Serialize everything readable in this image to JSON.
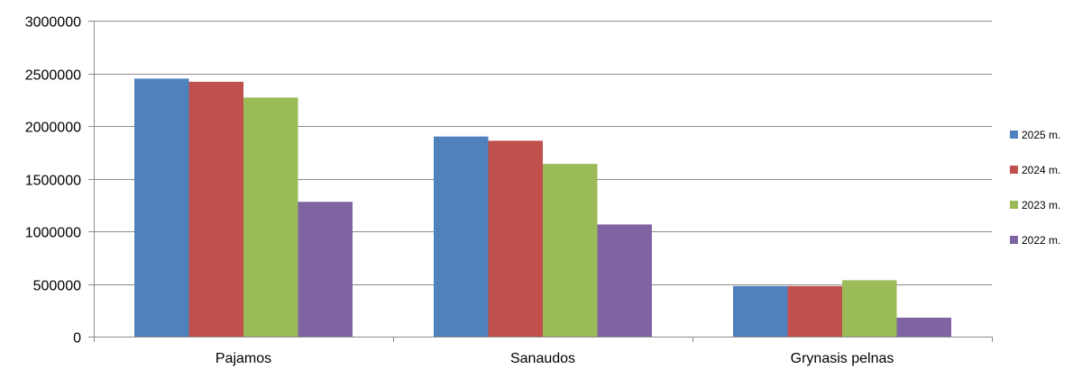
{
  "chart_data": {
    "type": "bar",
    "categories": [
      "Pajamos",
      "Sanaudos",
      "Grynasis pelnas"
    ],
    "series": [
      {
        "name": "2025 m.",
        "color": "#4F81BD",
        "values": [
          2450000,
          1900000,
          480000
        ]
      },
      {
        "name": "2024 m.",
        "color": "#C0504D",
        "values": [
          2420000,
          1860000,
          480000
        ]
      },
      {
        "name": "2023 m.",
        "color": "#9BBB59",
        "values": [
          2270000,
          1640000,
          535000
        ]
      },
      {
        "name": "2022 m.",
        "color": "#8064A2",
        "values": [
          1280000,
          1065000,
          180000
        ]
      }
    ],
    "yticks": [
      "0",
      "500000",
      "1000000",
      "1500000",
      "2000000",
      "2500000",
      "3000000"
    ],
    "ylim": [
      0,
      3000000
    ],
    "grid": true,
    "legend_position": "right",
    "title": "",
    "xlabel": "",
    "ylabel": ""
  }
}
